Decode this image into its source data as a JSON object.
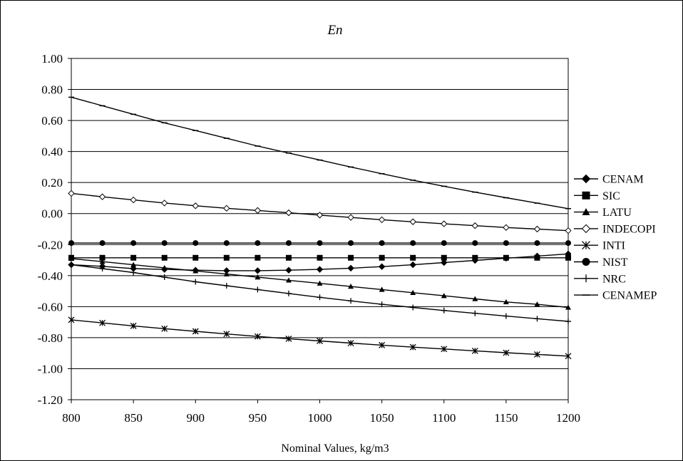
{
  "chart_data": {
    "type": "line",
    "title": "En",
    "xlabel": "Nominal Values, kg/m3",
    "ylabel": "",
    "xlim": [
      800,
      1200
    ],
    "ylim": [
      -1.2,
      1.0
    ],
    "x_ticks": [
      "800",
      "850",
      "900",
      "950",
      "1000",
      "1050",
      "1100",
      "1150",
      "1200"
    ],
    "y_ticks": [
      "1.00",
      "0.80",
      "0.60",
      "0.40",
      "0.20",
      "0.00",
      "-0.20",
      "-0.40",
      "-0.60",
      "-0.80",
      "-1.00",
      "-1.20"
    ],
    "grid": "horizontal",
    "legend_position": "right",
    "x": [
      800,
      825,
      850,
      875,
      900,
      925,
      950,
      975,
      1000,
      1025,
      1050,
      1075,
      1100,
      1125,
      1150,
      1175,
      1200
    ],
    "series": [
      {
        "name": "CENAM",
        "marker": "diamond-filled",
        "values": [
          -0.33,
          -0.34,
          -0.355,
          -0.36,
          -0.365,
          -0.368,
          -0.368,
          -0.365,
          -0.36,
          -0.352,
          -0.342,
          -0.33,
          -0.316,
          -0.302,
          -0.288,
          -0.274,
          -0.26
        ]
      },
      {
        "name": "SIC",
        "marker": "square-filled",
        "values": [
          -0.285,
          -0.285,
          -0.285,
          -0.285,
          -0.285,
          -0.285,
          -0.285,
          -0.285,
          -0.285,
          -0.285,
          -0.285,
          -0.285,
          -0.285,
          -0.285,
          -0.285,
          -0.285,
          -0.285
        ]
      },
      {
        "name": "LATU",
        "marker": "triangle-filled",
        "values": [
          -0.29,
          -0.31,
          -0.33,
          -0.35,
          -0.37,
          -0.39,
          -0.41,
          -0.43,
          -0.45,
          -0.47,
          -0.49,
          -0.51,
          -0.53,
          -0.55,
          -0.57,
          -0.585,
          -0.605
        ]
      },
      {
        "name": "INDECOPI",
        "marker": "diamond-open",
        "values": [
          0.13,
          0.108,
          0.088,
          0.068,
          0.05,
          0.034,
          0.02,
          0.005,
          -0.01,
          -0.025,
          -0.04,
          -0.053,
          -0.066,
          -0.078,
          -0.09,
          -0.1,
          -0.11
        ]
      },
      {
        "name": "INTI",
        "marker": "star",
        "values": [
          -0.685,
          -0.705,
          -0.724,
          -0.742,
          -0.759,
          -0.776,
          -0.792,
          -0.807,
          -0.821,
          -0.835,
          -0.848,
          -0.861,
          -0.873,
          -0.885,
          -0.897,
          -0.908,
          -0.919
        ]
      },
      {
        "name": "NIST",
        "marker": "circle-filled",
        "values": [
          -0.19,
          -0.19,
          -0.19,
          -0.19,
          -0.19,
          -0.19,
          -0.19,
          -0.19,
          -0.19,
          -0.19,
          -0.19,
          -0.19,
          -0.19,
          -0.19,
          -0.19,
          -0.19,
          -0.19
        ]
      },
      {
        "name": "NRC",
        "marker": "plus",
        "values": [
          -0.33,
          -0.355,
          -0.38,
          -0.41,
          -0.44,
          -0.465,
          -0.49,
          -0.515,
          -0.54,
          -0.563,
          -0.585,
          -0.605,
          -0.625,
          -0.643,
          -0.661,
          -0.678,
          -0.695
        ]
      },
      {
        "name": "CENAMEP",
        "marker": "dash",
        "values": [
          0.75,
          0.695,
          0.64,
          0.585,
          0.535,
          0.485,
          0.435,
          0.39,
          0.345,
          0.3,
          0.257,
          0.215,
          0.176,
          0.138,
          0.102,
          0.067,
          0.032
        ]
      }
    ]
  }
}
